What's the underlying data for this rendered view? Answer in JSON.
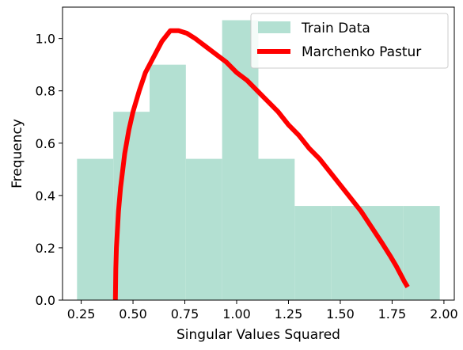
{
  "chart_data": {
    "type": "bar",
    "xlabel": "Singular Values Squared",
    "ylabel": "Frequency",
    "xlim": [
      0.16,
      2.05
    ],
    "ylim": [
      0.0,
      1.12
    ],
    "xticks": [
      0.25,
      0.5,
      0.75,
      1.0,
      1.25,
      1.5,
      1.75,
      2.0
    ],
    "xtick_labels": [
      "0.25",
      "0.50",
      "0.75",
      "1.00",
      "1.25",
      "1.50",
      "1.75",
      "2.00"
    ],
    "yticks": [
      0.0,
      0.2,
      0.4,
      0.6,
      0.8,
      1.0
    ],
    "ytick_labels": [
      "0.0",
      "0.2",
      "0.4",
      "0.6",
      "0.8",
      "1.0"
    ],
    "legend_position": "top-right",
    "colors": {
      "bars": "#b3e0d2",
      "curve": "#ff0000"
    },
    "series": [
      {
        "name": "Train Data",
        "type": "histogram",
        "bins": [
          {
            "x0": 0.23,
            "x1": 0.405,
            "value": 0.54
          },
          {
            "x0": 0.405,
            "x1": 0.58,
            "value": 0.72
          },
          {
            "x0": 0.58,
            "x1": 0.755,
            "value": 0.9
          },
          {
            "x0": 0.755,
            "x1": 0.93,
            "value": 0.54
          },
          {
            "x0": 0.93,
            "x1": 1.105,
            "value": 1.07
          },
          {
            "x0": 1.105,
            "x1": 1.28,
            "value": 0.54
          },
          {
            "x0": 1.28,
            "x1": 1.455,
            "value": 0.36
          },
          {
            "x0": 1.455,
            "x1": 1.63,
            "value": 0.36
          },
          {
            "x0": 1.63,
            "x1": 1.805,
            "value": 0.36
          },
          {
            "x0": 1.805,
            "x1": 1.98,
            "value": 0.36
          }
        ]
      },
      {
        "name": "Marchenko Pastur",
        "type": "line",
        "points": [
          [
            0.415,
            0.0
          ],
          [
            0.417,
            0.12
          ],
          [
            0.42,
            0.2
          ],
          [
            0.43,
            0.34
          ],
          [
            0.44,
            0.43
          ],
          [
            0.46,
            0.56
          ],
          [
            0.48,
            0.65
          ],
          [
            0.5,
            0.72
          ],
          [
            0.53,
            0.8
          ],
          [
            0.56,
            0.87
          ],
          [
            0.6,
            0.93
          ],
          [
            0.64,
            0.99
          ],
          [
            0.68,
            1.03
          ],
          [
            0.72,
            1.03
          ],
          [
            0.76,
            1.02
          ],
          [
            0.8,
            1.0
          ],
          [
            0.85,
            0.97
          ],
          [
            0.9,
            0.94
          ],
          [
            0.95,
            0.91
          ],
          [
            1.0,
            0.87
          ],
          [
            1.05,
            0.84
          ],
          [
            1.1,
            0.8
          ],
          [
            1.15,
            0.76
          ],
          [
            1.2,
            0.72
          ],
          [
            1.25,
            0.67
          ],
          [
            1.3,
            0.63
          ],
          [
            1.35,
            0.58
          ],
          [
            1.4,
            0.54
          ],
          [
            1.45,
            0.49
          ],
          [
            1.5,
            0.44
          ],
          [
            1.55,
            0.39
          ],
          [
            1.6,
            0.34
          ],
          [
            1.65,
            0.28
          ],
          [
            1.7,
            0.22
          ],
          [
            1.74,
            0.17
          ],
          [
            1.77,
            0.13
          ],
          [
            1.79,
            0.1
          ],
          [
            1.81,
            0.07
          ],
          [
            1.825,
            0.05
          ]
        ]
      }
    ]
  }
}
